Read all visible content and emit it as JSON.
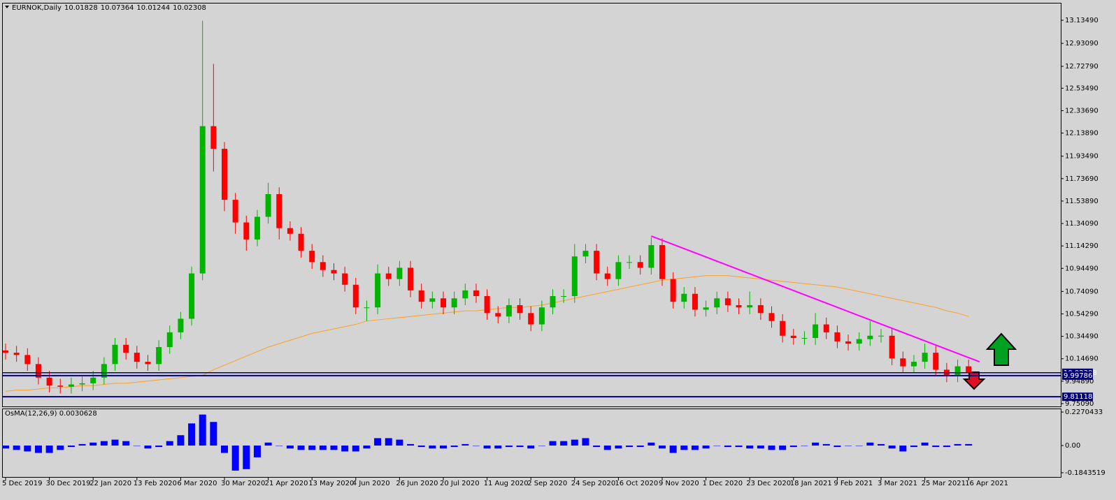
{
  "chart_data": [
    {
      "type": "candlestick",
      "title": "EURNOK,Daily",
      "ohlc_header": [
        10.01828,
        10.07364,
        10.01244,
        10.02308
      ],
      "categories": [
        "5 Dec 2019",
        null,
        null,
        null,
        "30 Dec 2019",
        null,
        null,
        null,
        "22 Jan 2020",
        null,
        null,
        null,
        "13 Feb 2020",
        null,
        null,
        null,
        "6 Mar 2020",
        null,
        null,
        null,
        "30 Mar 2020",
        null,
        null,
        null,
        "21 Apr 2020",
        null,
        null,
        null,
        "13 May 2020",
        null,
        null,
        null,
        "4 Jun 2020",
        null,
        null,
        null,
        "26 Jun 2020",
        null,
        null,
        null,
        "20 Jul 2020",
        null,
        null,
        null,
        "11 Aug 2020",
        null,
        null,
        null,
        "2 Sep 2020",
        null,
        null,
        null,
        "24 Sep 2020",
        null,
        null,
        null,
        "16 Oct 2020",
        null,
        null,
        null,
        "9 Nov 2020",
        null,
        null,
        null,
        "1 Dec 2020",
        null,
        null,
        null,
        "23 Dec 2020",
        null,
        null,
        null,
        "18 Jan 2021",
        null,
        null,
        null,
        "9 Feb 2021",
        null,
        null,
        null,
        "3 Mar 2021",
        null,
        null,
        null,
        "25 Mar 2021",
        null,
        null,
        null,
        "16 Apr 2021"
      ],
      "open": [
        10.22,
        10.2,
        10.18,
        10.1,
        9.98,
        9.91,
        9.9,
        9.92,
        9.93,
        9.98,
        10.1,
        10.27,
        10.2,
        10.12,
        10.1,
        10.25,
        10.38,
        10.5,
        10.9,
        12.2,
        12.0,
        11.55,
        11.35,
        11.2,
        11.4,
        11.6,
        11.3,
        11.25,
        11.1,
        11.0,
        10.93,
        10.9,
        10.8,
        10.6,
        10.6,
        10.9,
        10.85,
        10.95,
        10.75,
        10.65,
        10.68,
        10.6,
        10.68,
        10.75,
        10.7,
        10.55,
        10.52,
        10.62,
        10.55,
        10.45,
        10.6,
        10.7,
        10.7,
        11.05,
        11.1,
        10.9,
        10.85,
        11.0,
        11.0,
        10.95,
        11.15,
        10.85,
        10.65,
        10.72,
        10.58,
        10.6,
        10.68,
        10.62,
        10.6,
        10.62,
        10.55,
        10.48,
        10.35,
        10.33,
        10.33,
        10.45,
        10.38,
        10.3,
        10.28,
        10.32,
        10.35,
        10.35,
        10.15,
        10.08,
        10.12,
        10.2,
        10.05,
        10.0,
        10.08
      ],
      "high": [
        10.28,
        10.26,
        10.24,
        10.16,
        10.04,
        9.97,
        9.98,
        9.99,
        10.04,
        10.16,
        10.33,
        10.33,
        10.26,
        10.18,
        10.31,
        10.44,
        10.56,
        10.96,
        13.13,
        12.75,
        12.06,
        11.61,
        11.41,
        11.46,
        11.7,
        11.66,
        11.36,
        11.31,
        11.16,
        11.06,
        10.99,
        10.96,
        10.86,
        10.66,
        10.98,
        10.96,
        11.01,
        11.01,
        10.81,
        10.74,
        10.74,
        10.74,
        10.81,
        10.81,
        10.76,
        10.61,
        10.68,
        10.68,
        10.61,
        10.66,
        10.76,
        10.76,
        11.16,
        11.16,
        11.16,
        10.96,
        11.06,
        11.06,
        11.06,
        11.22,
        11.21,
        10.91,
        10.78,
        10.78,
        10.66,
        10.74,
        10.74,
        10.68,
        10.74,
        10.68,
        10.61,
        10.54,
        10.41,
        10.39,
        10.55,
        10.51,
        10.44,
        10.36,
        10.38,
        10.48,
        10.41,
        10.41,
        10.21,
        10.18,
        10.28,
        10.26,
        10.11,
        10.14,
        10.14
      ],
      "low": [
        10.14,
        10.12,
        10.04,
        9.92,
        9.85,
        9.84,
        9.84,
        9.86,
        9.87,
        9.92,
        10.04,
        10.14,
        10.06,
        10.04,
        10.04,
        10.19,
        10.32,
        10.44,
        10.84,
        11.8,
        11.45,
        11.25,
        11.1,
        11.14,
        11.34,
        11.2,
        11.19,
        11.04,
        10.94,
        10.87,
        10.84,
        10.74,
        10.54,
        10.48,
        10.54,
        10.79,
        10.79,
        10.69,
        10.59,
        10.59,
        10.54,
        10.54,
        10.62,
        10.64,
        10.49,
        10.46,
        10.46,
        10.49,
        10.39,
        10.39,
        10.54,
        10.64,
        10.64,
        10.99,
        10.84,
        10.79,
        10.79,
        10.94,
        10.89,
        10.89,
        10.79,
        10.59,
        10.59,
        10.52,
        10.52,
        10.54,
        10.56,
        10.54,
        10.54,
        10.49,
        10.42,
        10.29,
        10.27,
        10.27,
        10.27,
        10.32,
        10.24,
        10.22,
        10.22,
        10.26,
        10.29,
        10.09,
        10.02,
        10.02,
        10.06,
        9.99,
        9.94,
        9.94,
        9.96
      ],
      "close": [
        10.2,
        10.18,
        10.1,
        9.98,
        9.91,
        9.9,
        9.92,
        9.93,
        9.98,
        10.1,
        10.27,
        10.2,
        10.12,
        10.1,
        10.25,
        10.38,
        10.5,
        10.9,
        12.2,
        12.0,
        11.55,
        11.35,
        11.2,
        11.4,
        11.6,
        11.3,
        11.25,
        11.1,
        11.0,
        10.93,
        10.9,
        10.8,
        10.6,
        10.6,
        10.9,
        10.85,
        10.95,
        10.75,
        10.65,
        10.68,
        10.6,
        10.68,
        10.75,
        10.7,
        10.55,
        10.52,
        10.62,
        10.55,
        10.45,
        10.6,
        10.7,
        10.7,
        11.05,
        11.1,
        10.9,
        10.85,
        11.0,
        11.0,
        10.95,
        11.15,
        10.85,
        10.65,
        10.72,
        10.58,
        10.6,
        10.68,
        10.62,
        10.6,
        10.62,
        10.55,
        10.48,
        10.35,
        10.33,
        10.33,
        10.45,
        10.38,
        10.3,
        10.28,
        10.32,
        10.35,
        10.35,
        10.15,
        10.08,
        10.12,
        10.2,
        10.05,
        10.0,
        10.08,
        10.02
      ],
      "colors": {
        "up": "#00b400",
        "down": "#ff0000"
      },
      "ma": {
        "color": "#ffa020",
        "values": [
          9.86,
          9.87,
          9.87,
          9.88,
          9.89,
          9.89,
          9.9,
          9.91,
          9.91,
          9.92,
          9.93,
          9.93,
          9.94,
          9.95,
          9.96,
          9.97,
          9.98,
          9.99,
          10.0,
          10.05,
          10.09,
          10.13,
          10.17,
          10.21,
          10.25,
          10.28,
          10.31,
          10.34,
          10.37,
          10.39,
          10.41,
          10.43,
          10.45,
          10.48,
          10.49,
          10.5,
          10.51,
          10.52,
          10.53,
          10.54,
          10.55,
          10.56,
          10.57,
          10.57,
          10.58,
          10.59,
          10.6,
          10.6,
          10.61,
          10.62,
          10.64,
          10.66,
          10.68,
          10.7,
          10.72,
          10.74,
          10.76,
          10.78,
          10.8,
          10.82,
          10.84,
          10.85,
          10.86,
          10.87,
          10.88,
          10.88,
          10.88,
          10.87,
          10.86,
          10.85,
          10.84,
          10.83,
          10.82,
          10.81,
          10.8,
          10.79,
          10.78,
          10.76,
          10.74,
          10.72,
          10.7,
          10.68,
          10.66,
          10.64,
          10.62,
          10.6,
          10.57,
          10.55,
          10.52
        ]
      },
      "trend_line": {
        "color": "#ff00ff",
        "start_index": 59,
        "start": 11.23,
        "end_index": 89,
        "end": 10.12
      },
      "levels": [
        {
          "value": 9.99786,
          "color": "#000080"
        },
        {
          "value": 9.81118,
          "color": "#000080"
        }
      ],
      "ylim": [
        9.726,
        13.289
      ],
      "yticks": [
        {
          "value": 13.1349,
          "label": "13.13490"
        },
        {
          "value": 12.9309,
          "label": "12.93090"
        },
        {
          "value": 12.7279,
          "label": "12.72790"
        },
        {
          "value": 12.5349,
          "label": "12.53490"
        },
        {
          "value": 12.3369,
          "label": "12.33690"
        },
        {
          "value": 12.1389,
          "label": "12.13890"
        },
        {
          "value": 11.9349,
          "label": "11.93490"
        },
        {
          "value": 11.7369,
          "label": "11.73690"
        },
        {
          "value": 11.5389,
          "label": "11.53890"
        },
        {
          "value": 11.3409,
          "label": "11.34090"
        },
        {
          "value": 11.1429,
          "label": "11.14290"
        },
        {
          "value": 10.9449,
          "label": "10.94490"
        },
        {
          "value": 10.7409,
          "label": "10.74090"
        },
        {
          "value": 10.5429,
          "label": "10.54290"
        },
        {
          "value": 10.3449,
          "label": "10.34490"
        },
        {
          "value": 10.1469,
          "label": "10.14690"
        },
        {
          "value": 9.9489,
          "label": "9.94890"
        },
        {
          "value": 9.7509,
          "label": "9.75090"
        }
      ],
      "grid": false
    },
    {
      "type": "bar",
      "title": "OsMA(12,26,9) 0.0030628",
      "color": "#0000ff",
      "values": [
        -0.02,
        -0.03,
        -0.04,
        -0.05,
        -0.05,
        -0.03,
        -0.01,
        0.01,
        0.02,
        0.03,
        0.04,
        0.03,
        0.0,
        -0.02,
        -0.01,
        0.03,
        0.07,
        0.15,
        0.21,
        0.16,
        -0.05,
        -0.17,
        -0.16,
        -0.08,
        0.02,
        0.0,
        -0.02,
        -0.03,
        -0.03,
        -0.03,
        -0.03,
        -0.04,
        -0.04,
        -0.02,
        0.05,
        0.05,
        0.04,
        0.01,
        -0.01,
        -0.02,
        -0.02,
        -0.01,
        0.01,
        0.0,
        -0.02,
        -0.02,
        -0.01,
        -0.01,
        -0.02,
        0.0,
        0.03,
        0.03,
        0.04,
        0.05,
        -0.01,
        -0.03,
        -0.02,
        -0.01,
        -0.01,
        0.02,
        -0.02,
        -0.05,
        -0.03,
        -0.03,
        -0.02,
        0.0,
        -0.01,
        -0.01,
        -0.02,
        -0.02,
        -0.03,
        -0.03,
        -0.01,
        0.0,
        0.02,
        0.01,
        -0.01,
        0.0,
        0.0,
        0.02,
        0.01,
        -0.02,
        -0.04,
        -0.01,
        0.02,
        -0.01,
        -0.01,
        0.01,
        0.01
      ],
      "ylim": [
        -0.213,
        0.251
      ],
      "yticks": [
        0.2270433,
        {
          "value": 0,
          "label": "0.00"
        },
        -0.1843519
      ],
      "grid": false
    }
  ]
}
